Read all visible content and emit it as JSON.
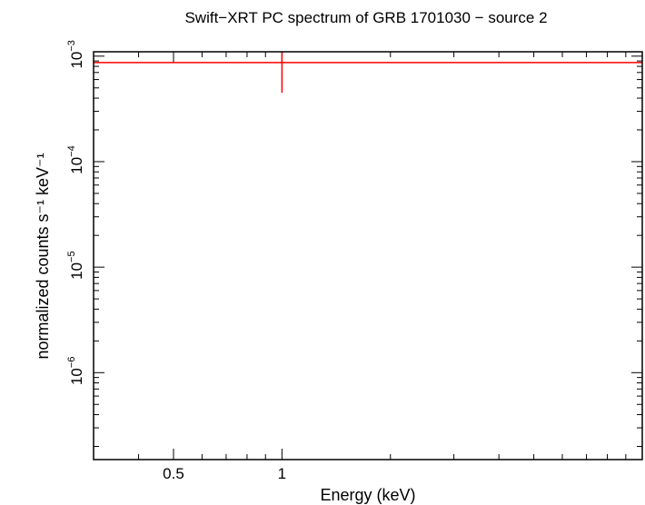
{
  "chart_data": {
    "type": "scatter",
    "title": "Swift−XRT PC spectrum of GRB 1701030 − source 2",
    "xlabel": "Energy (keV)",
    "ylabel": "normalized counts s⁻¹ keV⁻¹",
    "xscale": "log",
    "yscale": "log",
    "xlim": [
      0.3,
      10.0
    ],
    "ylim": [
      1.5e-07,
      0.0011
    ],
    "x_ticks": [
      {
        "value": 0.5,
        "label": "0.5"
      },
      {
        "value": 1,
        "label": "1"
      }
    ],
    "y_ticks": [
      {
        "value": 0.001,
        "mantissa": "10",
        "exp": "−3"
      },
      {
        "value": 0.0001,
        "mantissa": "10",
        "exp": "−4"
      },
      {
        "value": 1e-05,
        "mantissa": "10",
        "exp": "−5"
      },
      {
        "value": 1e-06,
        "mantissa": "10",
        "exp": "−6"
      }
    ],
    "grid": false,
    "series": [
      {
        "color": "#ff0000",
        "points": [
          {
            "x": 1.0,
            "y": 0.00087,
            "y_err_low": 0.00045,
            "y_err_high": 0.0011
          }
        ],
        "model_y": 0.00087
      }
    ]
  }
}
